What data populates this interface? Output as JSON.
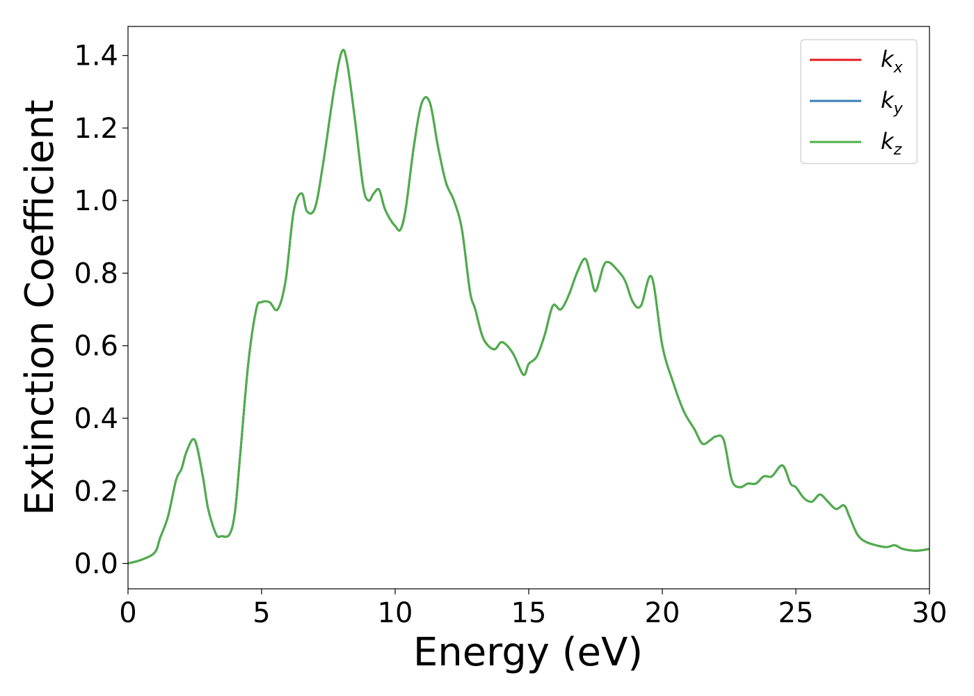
{
  "chart_data": {
    "type": "line",
    "title": "",
    "xlabel": "Energy (eV)",
    "ylabel": "Extinction Coefficient",
    "xlim": [
      0,
      30
    ],
    "ylim": [
      -0.07,
      1.48
    ],
    "xticks": [
      0,
      5,
      10,
      15,
      20,
      25,
      30
    ],
    "xtick_labels": [
      "0",
      "5",
      "10",
      "15",
      "20",
      "25",
      "30"
    ],
    "yticks": [
      0.0,
      0.2,
      0.4,
      0.6,
      0.8,
      1.0,
      1.2,
      1.4
    ],
    "ytick_labels": [
      "0.0",
      "0.2",
      "0.4",
      "0.6",
      "0.8",
      "1.0",
      "1.2",
      "1.4"
    ],
    "grid": false,
    "legend_position": "top-right",
    "x": [
      0,
      0.5,
      1.0,
      1.2,
      1.5,
      1.8,
      2.0,
      2.2,
      2.5,
      2.8,
      3.0,
      3.3,
      3.5,
      3.8,
      4.0,
      4.2,
      4.5,
      4.8,
      5.0,
      5.3,
      5.6,
      5.9,
      6.2,
      6.5,
      6.7,
      7.0,
      7.3,
      7.7,
      8.0,
      8.2,
      8.5,
      8.8,
      9.0,
      9.2,
      9.4,
      9.6,
      9.8,
      10.0,
      10.2,
      10.4,
      10.7,
      11.0,
      11.3,
      11.6,
      11.9,
      12.2,
      12.5,
      12.8,
      13.0,
      13.3,
      13.7,
      14.0,
      14.4,
      14.8,
      15.0,
      15.3,
      15.6,
      15.9,
      16.2,
      16.5,
      16.8,
      17.1,
      17.3,
      17.5,
      17.8,
      18.0,
      18.3,
      18.6,
      18.9,
      19.2,
      19.6,
      20.0,
      20.4,
      20.8,
      21.2,
      21.5,
      21.8,
      22.0,
      22.3,
      22.6,
      22.9,
      23.2,
      23.5,
      23.8,
      24.1,
      24.5,
      24.8,
      25.0,
      25.3,
      25.6,
      25.9,
      26.2,
      26.5,
      26.8,
      27.0,
      27.3,
      27.6,
      28.0,
      28.4,
      28.7,
      29.0,
      29.5,
      30.0
    ],
    "series": [
      {
        "name": "kx",
        "color": "#e41a1c"
      },
      {
        "name": "ky",
        "color": "#377eb8"
      },
      {
        "name": "kz",
        "color": "#4daf4a"
      }
    ],
    "values": [
      0.0,
      0.01,
      0.03,
      0.07,
      0.13,
      0.23,
      0.26,
      0.31,
      0.34,
      0.24,
      0.15,
      0.08,
      0.075,
      0.08,
      0.14,
      0.3,
      0.55,
      0.7,
      0.72,
      0.72,
      0.7,
      0.78,
      0.97,
      1.02,
      0.97,
      0.98,
      1.1,
      1.3,
      1.41,
      1.38,
      1.22,
      1.04,
      1.0,
      1.02,
      1.03,
      0.98,
      0.95,
      0.93,
      0.92,
      0.98,
      1.15,
      1.27,
      1.27,
      1.15,
      1.05,
      1.0,
      0.92,
      0.75,
      0.7,
      0.62,
      0.59,
      0.61,
      0.58,
      0.52,
      0.55,
      0.57,
      0.63,
      0.71,
      0.7,
      0.74,
      0.8,
      0.84,
      0.8,
      0.75,
      0.82,
      0.83,
      0.81,
      0.78,
      0.72,
      0.71,
      0.79,
      0.6,
      0.5,
      0.42,
      0.37,
      0.33,
      0.34,
      0.35,
      0.34,
      0.23,
      0.21,
      0.22,
      0.22,
      0.24,
      0.24,
      0.27,
      0.22,
      0.21,
      0.18,
      0.17,
      0.19,
      0.17,
      0.15,
      0.16,
      0.13,
      0.08,
      0.06,
      0.05,
      0.045,
      0.05,
      0.04,
      0.035,
      0.04
    ]
  }
}
